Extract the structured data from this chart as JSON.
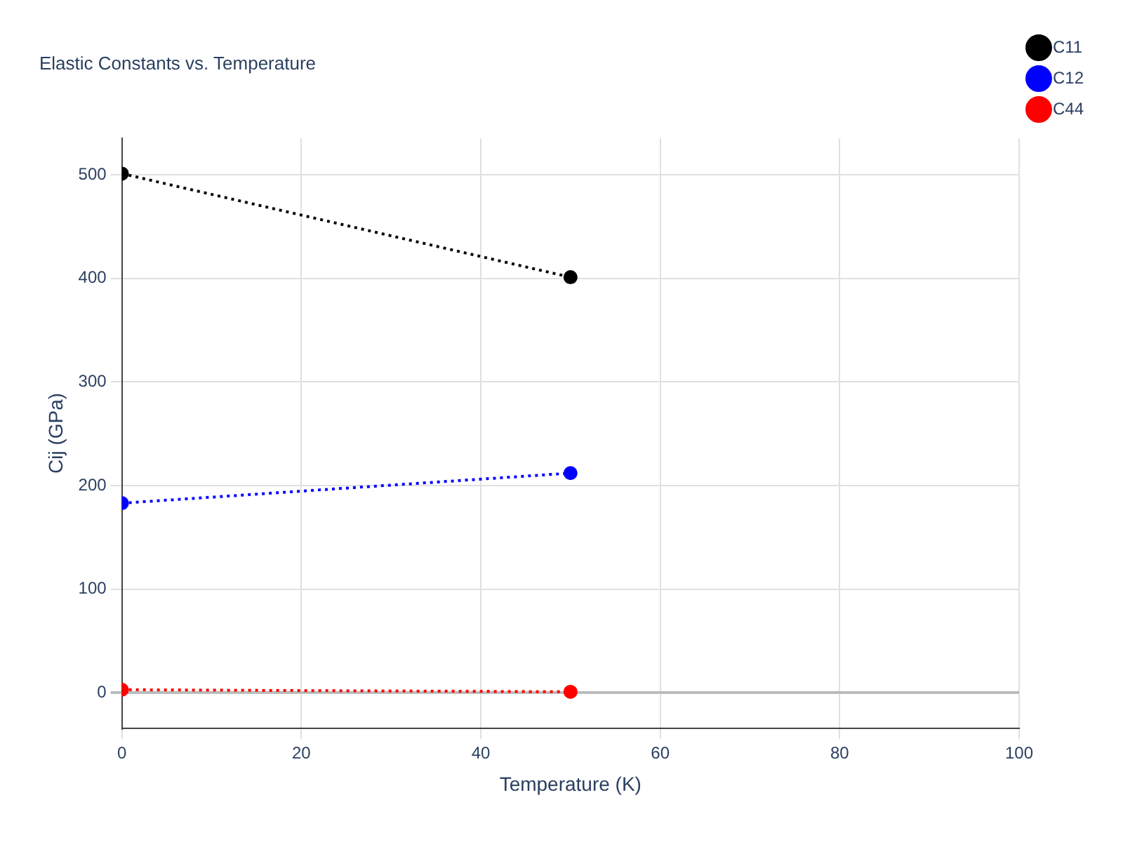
{
  "chart_data": {
    "type": "line",
    "title": "Elastic Constants vs. Temperature",
    "xlabel": "Temperature (K)",
    "ylabel": "Cij (GPa)",
    "x": [
      0,
      50
    ],
    "series": [
      {
        "name": "C11",
        "color": "#000000",
        "values": [
          501,
          401
        ]
      },
      {
        "name": "C12",
        "color": "#0000ff",
        "values": [
          183,
          212
        ]
      },
      {
        "name": "C44",
        "color": "#ff0000",
        "values": [
          3,
          1
        ]
      }
    ],
    "xlim": [
      0,
      100
    ],
    "xticks": [
      0,
      20,
      40,
      60,
      80,
      100
    ],
    "ylim": [
      -34,
      535
    ],
    "yticks": [
      0,
      100,
      200,
      300,
      400,
      500
    ],
    "grid": true,
    "legend": "top right",
    "marker": "circle",
    "line_style": "dotted"
  }
}
